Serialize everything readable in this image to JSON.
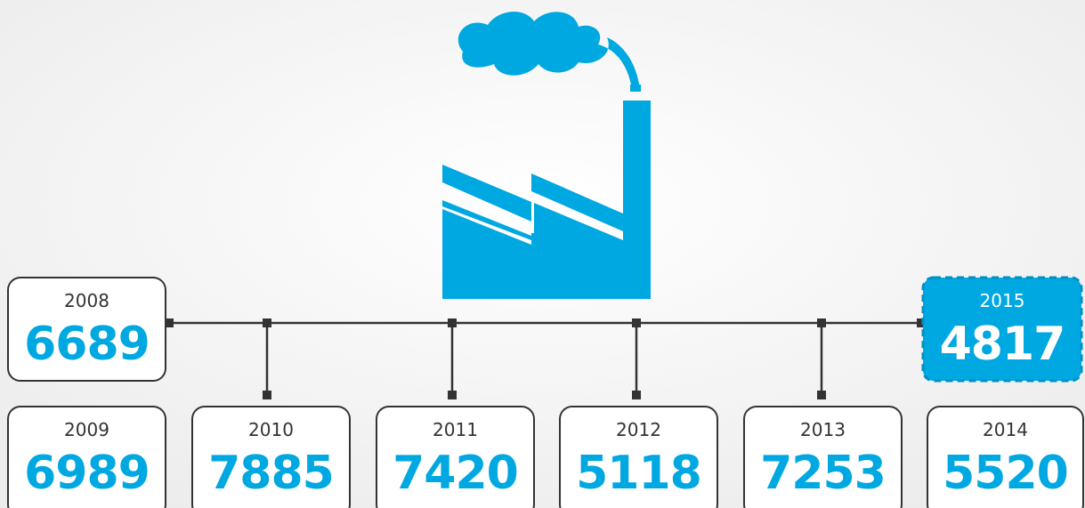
{
  "items": [
    {
      "year": "2008",
      "value": 6689
    },
    {
      "year": "2009",
      "value": 6989
    },
    {
      "year": "2010",
      "value": 7885
    },
    {
      "year": "2011",
      "value": 7420
    },
    {
      "year": "2012",
      "value": 5118
    },
    {
      "year": "2013",
      "value": 7253
    },
    {
      "year": "2014",
      "value": 5520
    },
    {
      "year": "2015",
      "value": 4817
    }
  ]
}
